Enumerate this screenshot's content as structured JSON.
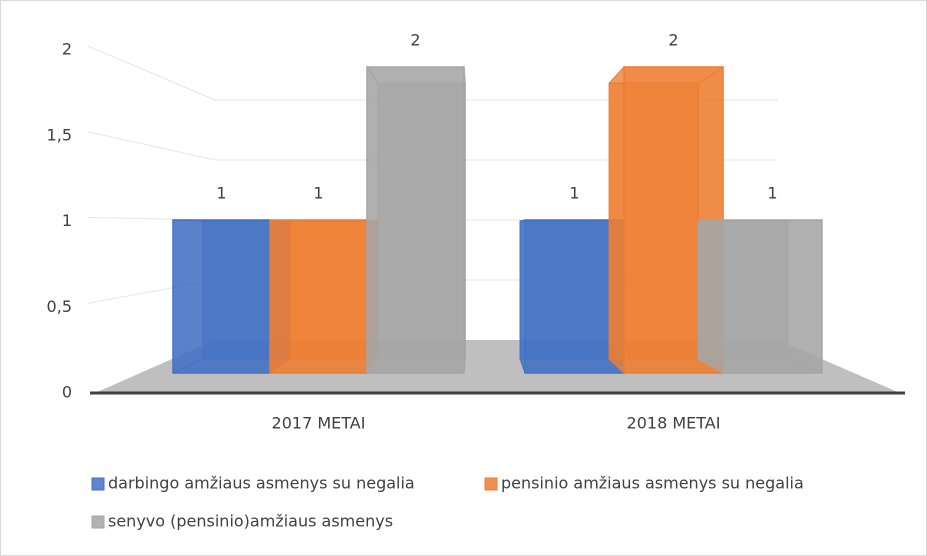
{
  "chart_data": {
    "type": "bar3d",
    "categories": [
      "2017 METAI",
      "2018 METAI"
    ],
    "series": [
      {
        "name": "darbingo amžiaus asmenys su negalia",
        "color": "#4472c4",
        "values": [
          1,
          1
        ]
      },
      {
        "name": "pensinio amžiaus asmenys su negalia",
        "color": "#ed7d31",
        "values": [
          1,
          2
        ]
      },
      {
        "name": "senyvo (pensinio)amžiaus asmenys",
        "color": "#a5a5a5",
        "values": [
          2,
          1
        ]
      }
    ],
    "ylim": [
      0,
      2
    ],
    "yticks": [
      0,
      {
        "value": 0.5,
        "label": "0,5"
      },
      1,
      {
        "value": 1.5,
        "label": "1,5"
      },
      2
    ],
    "grid": true,
    "legend": "bottom"
  }
}
